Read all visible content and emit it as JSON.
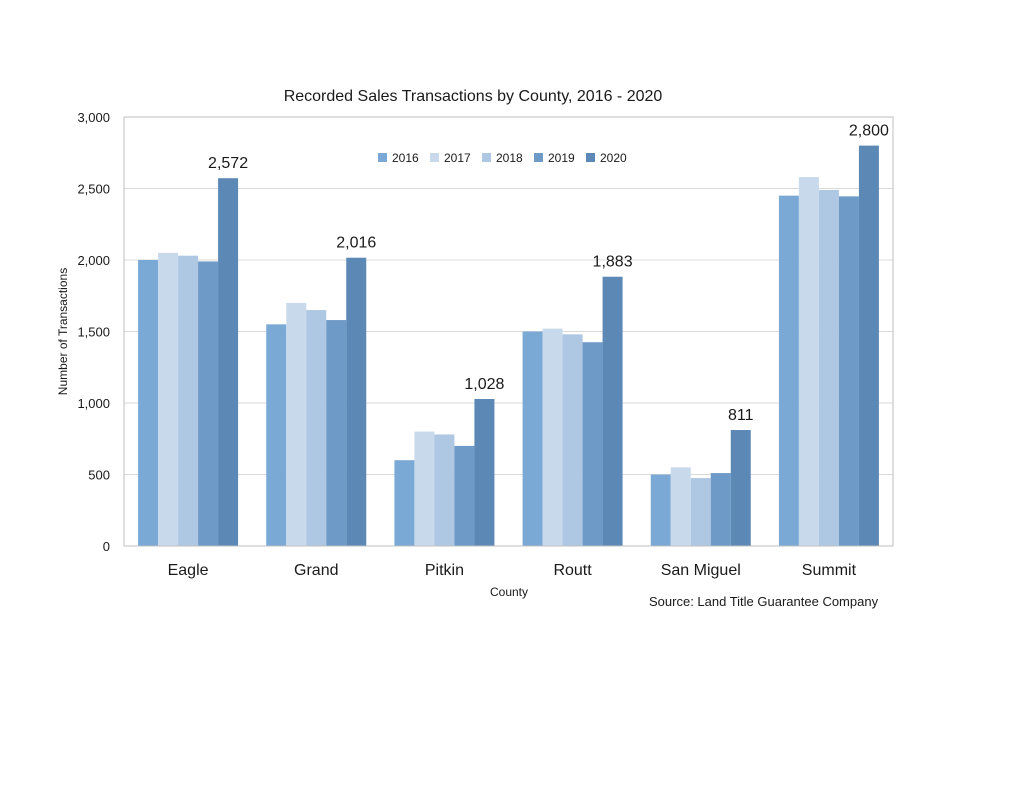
{
  "chart_data": {
    "type": "bar",
    "title": "Recorded Sales Transactions by County, 2016 - 2020",
    "xlabel": "County",
    "ylabel": "Number of Transactions",
    "ylim": [
      0,
      3000
    ],
    "yticks": [
      0,
      500,
      1000,
      1500,
      2000,
      2500,
      3000
    ],
    "ytick_labels": [
      "0",
      "500",
      "1,000",
      "1,500",
      "2,000",
      "2,500",
      "3,000"
    ],
    "categories": [
      "Eagle",
      "Grand",
      "Pitkin",
      "Routt",
      "San Miguel",
      "Summit"
    ],
    "series": [
      {
        "name": "2016",
        "color": "#7aa9d6",
        "values": [
          2000,
          1550,
          600,
          1500,
          500,
          2450
        ]
      },
      {
        "name": "2017",
        "color": "#c9d9ec",
        "values": [
          2050,
          1700,
          800,
          1520,
          550,
          2580
        ]
      },
      {
        "name": "2018",
        "color": "#aec7e3",
        "values": [
          2030,
          1650,
          780,
          1480,
          475,
          2490
        ]
      },
      {
        "name": "2019",
        "color": "#6d9ac7",
        "values": [
          1990,
          1580,
          700,
          1425,
          510,
          2445
        ]
      },
      {
        "name": "2020",
        "color": "#5b88b5",
        "values": [
          2572,
          2016,
          1028,
          1883,
          811,
          2800
        ]
      }
    ],
    "data_labels": {
      "series": "2020",
      "labels": [
        "2,572",
        "2,016",
        "1,028",
        "1,883",
        "811",
        "2,800"
      ]
    },
    "grid": true,
    "legend_position": "top-center",
    "source_note": "Source: Land Title Guarantee Company"
  }
}
